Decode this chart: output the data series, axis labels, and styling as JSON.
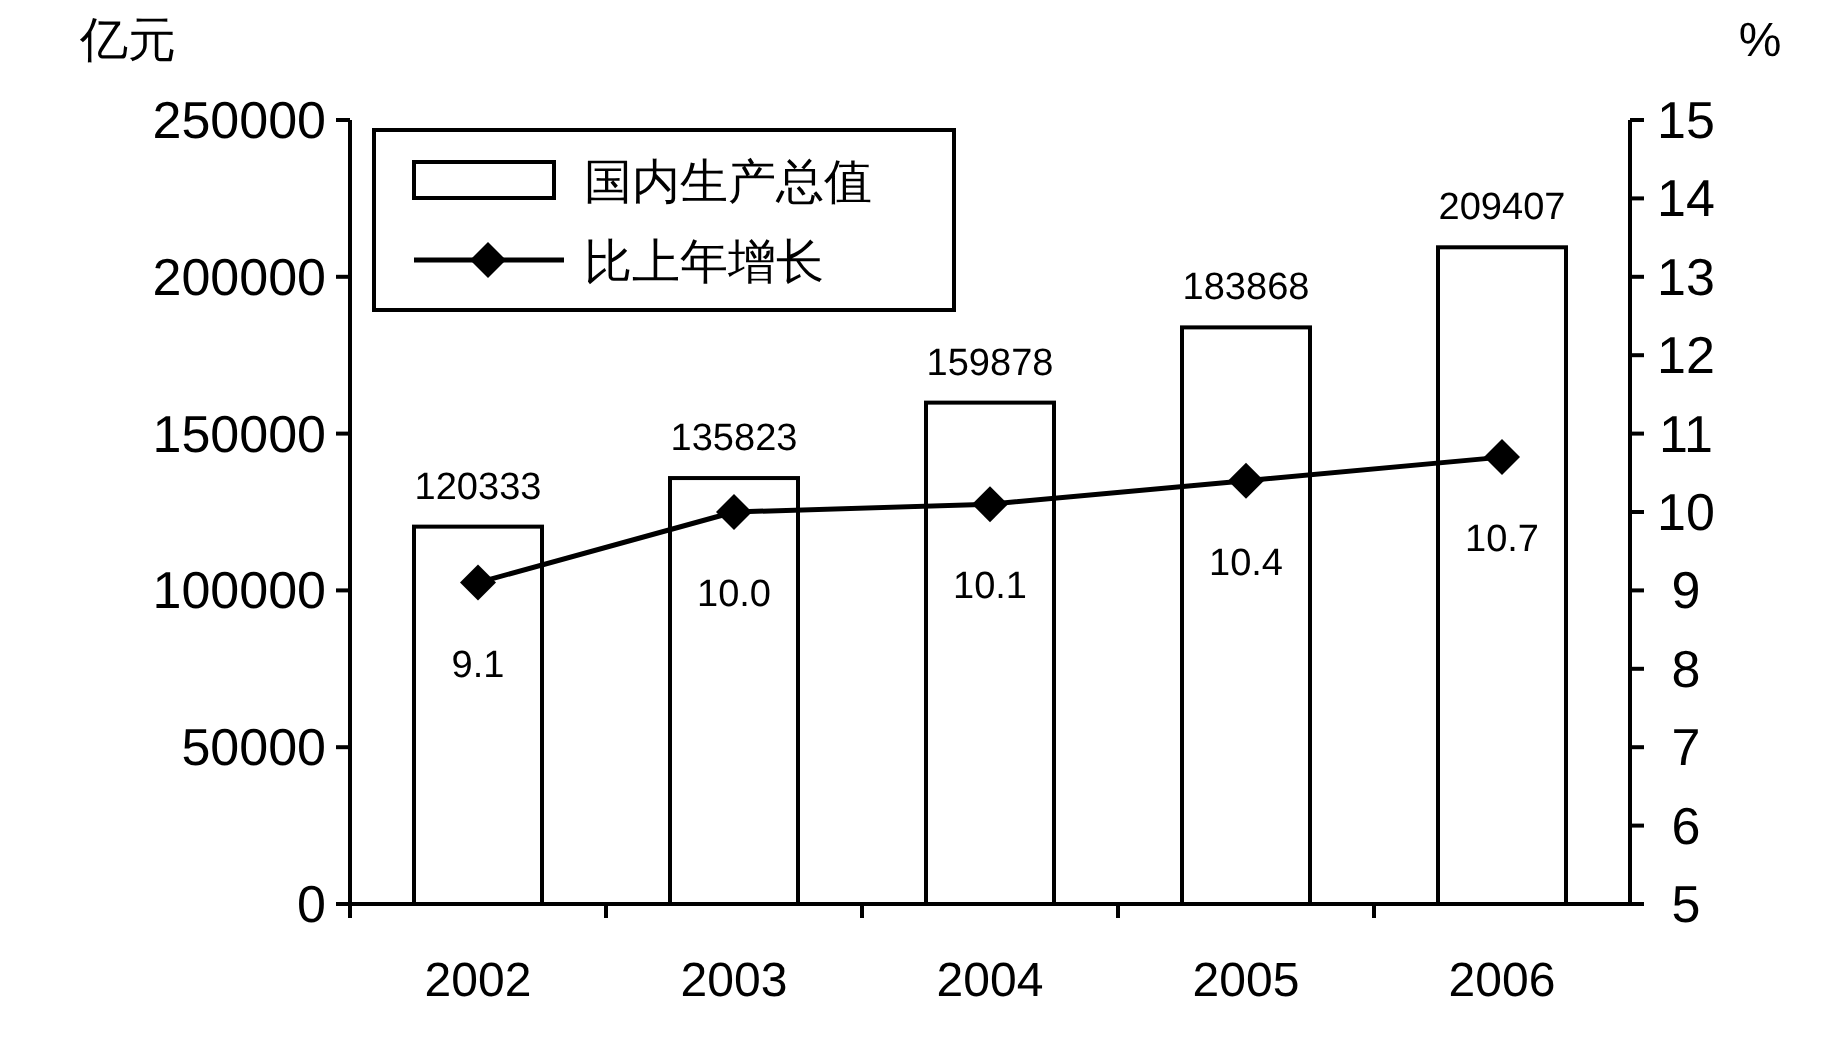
{
  "chart_data": {
    "type": "bar",
    "categories": [
      "2002",
      "2003",
      "2004",
      "2005",
      "2006"
    ],
    "ylabel": "亿元",
    "y2label": "%",
    "ylim": [
      0,
      250000
    ],
    "yticks": [
      0,
      50000,
      100000,
      150000,
      200000,
      250000
    ],
    "y2lim": [
      5,
      15
    ],
    "y2ticks": [
      5,
      6,
      7,
      8,
      9,
      10,
      11,
      12,
      13,
      14,
      15
    ],
    "legend": "top left",
    "grid": false,
    "data_labels": true,
    "series": [
      {
        "name": "国内生产总值",
        "color": "#ffffff",
        "values": [
          120333,
          135823,
          159878,
          183868,
          209407
        ]
      },
      {
        "name": "比上年增长",
        "type": "line",
        "axis": "y2",
        "color": "#000000",
        "marker": "diamond",
        "line_style": "solid",
        "values": [
          9.1,
          10.0,
          10.1,
          10.4,
          10.7
        ],
        "value_labels": [
          "9.1",
          "10.0",
          "10.1",
          "10.4",
          "10.7"
        ]
      }
    ]
  }
}
